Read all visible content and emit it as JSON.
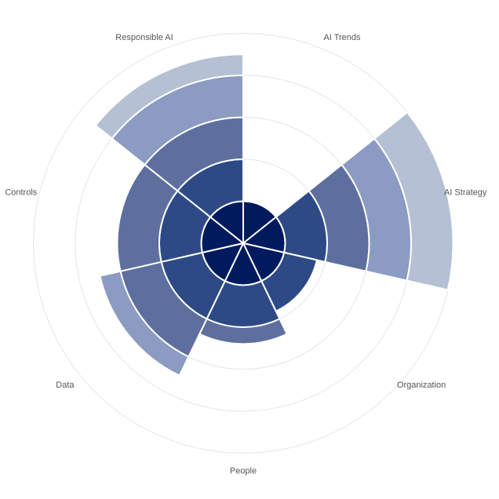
{
  "chart_data": {
    "type": "polar-stacked-bar",
    "categories": [
      "AI Trends",
      "AI Strategy",
      "Organization",
      "People",
      "Data",
      "Controls",
      "Responsible AI"
    ],
    "levels": [
      {
        "color": "#001a5e",
        "values": [
          1,
          1,
          1,
          1,
          1,
          1,
          1
        ]
      },
      {
        "color": "#2e4a86",
        "values": [
          0.5,
          2,
          1.8,
          2,
          2,
          2,
          2
        ]
      },
      {
        "color": "#5e6f9f",
        "values": [
          0,
          3,
          0,
          2.4,
          3,
          3,
          3
        ]
      },
      {
        "color": "#8b9bc2",
        "values": [
          0,
          4,
          0,
          0,
          3.5,
          0,
          4
        ]
      },
      {
        "color": "#b5c0d4",
        "values": [
          0,
          5,
          0,
          0,
          0,
          0,
          4.5
        ]
      }
    ],
    "r_max": 5,
    "grid_rings": [
      1,
      2,
      3,
      4,
      5
    ],
    "grid": true
  }
}
